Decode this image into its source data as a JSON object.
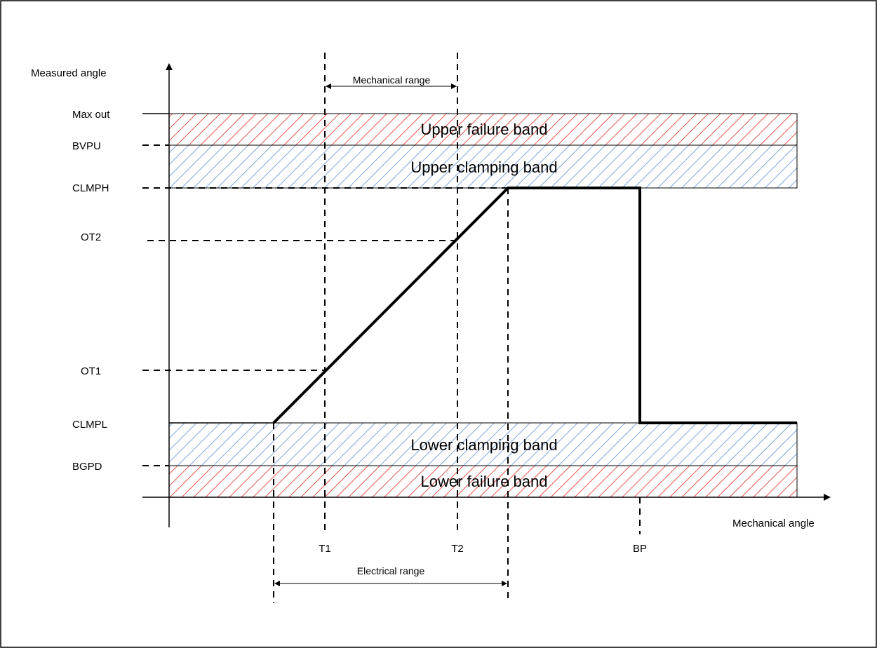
{
  "axes": {
    "y_label": "Measured angle",
    "x_label": "Mechanical angle"
  },
  "y_levels": {
    "max_out": "Max out",
    "bvpu": "BVPU",
    "clmph": "CLMPH",
    "ot2": "OT2",
    "ot1": "OT1",
    "clmpl": "CLMPL",
    "bgpd": "BGPD"
  },
  "x_marks": {
    "t1": "T1",
    "t2": "T2",
    "bp": "BP"
  },
  "bands": {
    "upper_failure": "Upper failure band",
    "upper_clamping": "Upper clamping band",
    "lower_clamping": "Lower clamping band",
    "lower_failure": "Lower failure band"
  },
  "ranges": {
    "mechanical": "Mechanical range",
    "electrical": "Electrical range"
  },
  "colors": {
    "failure_hatch": "#e8554f",
    "clamping_hatch": "#7fa6dd",
    "line": "#000000"
  }
}
